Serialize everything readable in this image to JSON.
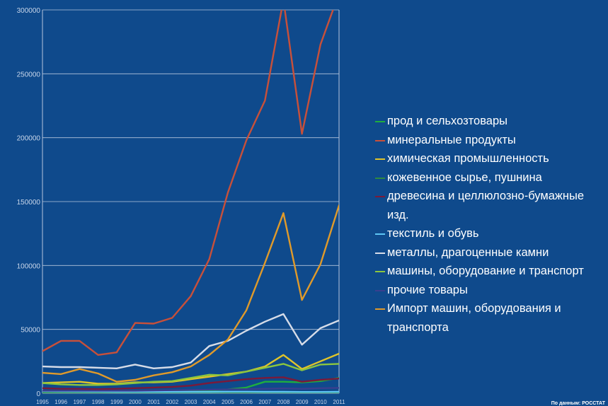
{
  "chart_data": {
    "type": "line",
    "title": "",
    "xlabel": "",
    "ylabel": "",
    "ylim": [
      0,
      300000
    ],
    "yticks": [
      "0",
      "50000",
      "100000",
      "150000",
      "200000",
      "250000",
      "300000"
    ],
    "ytick_values": [
      0,
      50000,
      100000,
      150000,
      200000,
      250000,
      300000
    ],
    "grid": true,
    "legend_position": "right",
    "categories": [
      "1995",
      "1996",
      "1997",
      "1998",
      "1999",
      "2000",
      "2001",
      "2002",
      "2003",
      "2004",
      "2005",
      "2006",
      "2007",
      "2008",
      "2009",
      "2010",
      "2011"
    ],
    "series": [
      {
        "name": "прод и сельхозтовары",
        "color": "#1fae3e",
        "values": [
          1200,
          1100,
          1000,
          900,
          700,
          800,
          1000,
          1200,
          1700,
          2300,
          3000,
          4500,
          9000,
          9000,
          8500,
          9500,
          12000
        ]
      },
      {
        "name": "минеральные продукты",
        "color": "#c8503a",
        "values": [
          33000,
          41000,
          41000,
          30000,
          32000,
          55000,
          54500,
          59000,
          76000,
          105000,
          157000,
          198000,
          229000,
          308000,
          203000,
          273000,
          313000
        ]
      },
      {
        "name": "химическая промышленность",
        "color": "#e0c42a",
        "values": [
          8000,
          8500,
          9000,
          7500,
          7500,
          8500,
          8500,
          9000,
          11000,
          13000,
          15000,
          17000,
          21000,
          30000,
          19000,
          25000,
          31000
        ]
      },
      {
        "name": "кожевенное сырье, пушнина",
        "color": "#2f8a3f",
        "values": [
          200,
          200,
          200,
          200,
          200,
          200,
          200,
          200,
          200,
          200,
          200,
          200,
          200,
          200,
          200,
          200,
          200
        ]
      },
      {
        "name": "древесина и целлюлозно-бумажные изд.",
        "color": "#7a1a3a",
        "values": [
          4000,
          3500,
          3500,
          3200,
          3500,
          4000,
          4500,
          5000,
          6000,
          8000,
          9500,
          11000,
          12000,
          12500,
          9000,
          10500,
          11500
        ]
      },
      {
        "name": "текстиль и обувь",
        "color": "#5ec6f5",
        "values": [
          1500,
          1400,
          1300,
          1200,
          1100,
          1100,
          1100,
          1100,
          1100,
          1100,
          1200,
          1200,
          1100,
          1100,
          1000,
          1000,
          1100
        ]
      },
      {
        "name": "металлы, драгоценные камни",
        "color": "#d6dce8",
        "values": [
          21000,
          20500,
          20500,
          20000,
          19500,
          22500,
          19500,
          20500,
          24000,
          37000,
          41000,
          49000,
          56000,
          62000,
          38000,
          51000,
          57000
        ]
      },
      {
        "name": "машины, оборудование и транспорт",
        "color": "#8cc63f",
        "values": [
          8000,
          7000,
          6500,
          6500,
          7000,
          8000,
          9000,
          9500,
          12000,
          14500,
          14000,
          17000,
          20000,
          23000,
          18000,
          22500,
          23000
        ]
      },
      {
        "name": "прочие товары",
        "color": "#3a3f8f",
        "values": [
          2000,
          2000,
          2000,
          2000,
          2000,
          2000,
          2200,
          2400,
          2600,
          2800,
          3000,
          3200,
          3500,
          3800,
          3500,
          4000,
          4200
        ]
      },
      {
        "name": "Импорт машин, оборудования и транспорта",
        "color": "#e09a2a",
        "values": [
          16000,
          15000,
          19000,
          15500,
          9000,
          10500,
          14000,
          16500,
          21000,
          30000,
          42000,
          65000,
          102000,
          141000,
          73000,
          101000,
          147000
        ]
      }
    ]
  },
  "source_note": "По данным: РОССТАТ"
}
